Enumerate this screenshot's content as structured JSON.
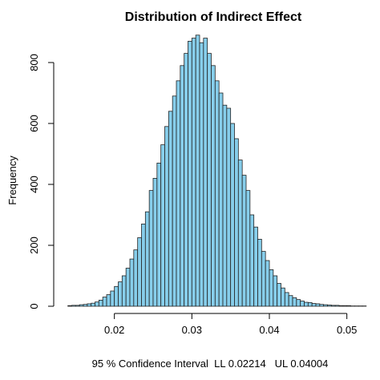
{
  "chart_data": {
    "type": "bar",
    "title": "Distribution of Indirect Effect",
    "xlabel": "",
    "ylabel": "Frequency",
    "subtitle": "95 % Confidence Interval  LL 0.02214   UL 0.04004",
    "xlim": [
      0.013,
      0.052
    ],
    "ylim": [
      0,
      900
    ],
    "xticks": [
      "0.02",
      "0.03",
      "0.04",
      "0.05"
    ],
    "yticks": [
      "0",
      "200",
      "400",
      "600",
      "800"
    ],
    "bin_width": 0.0005,
    "bin_start": 0.014,
    "bar_color": "#87CEEB",
    "values": [
      2,
      3,
      3,
      5,
      6,
      8,
      10,
      14,
      20,
      30,
      38,
      50,
      65,
      80,
      100,
      125,
      155,
      185,
      225,
      270,
      310,
      380,
      420,
      470,
      530,
      590,
      640,
      690,
      740,
      790,
      830,
      870,
      880,
      890,
      865,
      880,
      830,
      790,
      740,
      700,
      660,
      650,
      600,
      550,
      480,
      430,
      380,
      300,
      260,
      220,
      180,
      150,
      120,
      100,
      75,
      60,
      45,
      35,
      28,
      22,
      17,
      13,
      12,
      9,
      8,
      6,
      5,
      4,
      3,
      3,
      2,
      2,
      2,
      1,
      1,
      1,
      1
    ]
  }
}
